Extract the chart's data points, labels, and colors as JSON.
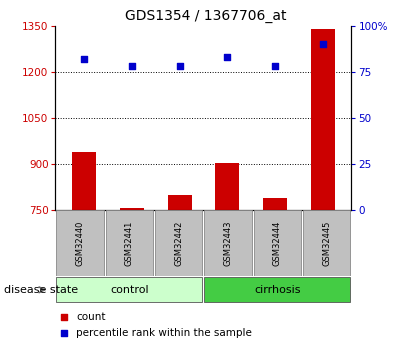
{
  "title": "GDS1354 / 1367706_at",
  "samples": [
    "GSM32440",
    "GSM32441",
    "GSM32442",
    "GSM32443",
    "GSM32444",
    "GSM32445"
  ],
  "count_values": [
    940,
    757,
    800,
    905,
    790,
    1340
  ],
  "percentile_values": [
    82,
    78,
    78,
    83,
    78,
    90
  ],
  "ylim_left": [
    750,
    1350
  ],
  "ylim_right": [
    0,
    100
  ],
  "yticks_left": [
    750,
    900,
    1050,
    1200,
    1350
  ],
  "yticks_right": [
    0,
    25,
    50,
    75,
    100
  ],
  "ytick_labels_right": [
    "0",
    "25",
    "50",
    "75",
    "100%"
  ],
  "bar_color": "#cc0000",
  "square_color": "#0000cc",
  "bar_bottom": 750,
  "groups": [
    {
      "label": "control",
      "start": 0,
      "end": 3,
      "color": "#ccffcc"
    },
    {
      "label": "cirrhosis",
      "start": 3,
      "end": 6,
      "color": "#44cc44"
    }
  ],
  "group_label": "disease state",
  "legend_count": "count",
  "legend_pct": "percentile rank within the sample",
  "title_fontsize": 10,
  "axis_label_color_left": "#cc0000",
  "axis_label_color_right": "#0000cc",
  "bar_width": 0.5,
  "x_positions": [
    0,
    1,
    2,
    3,
    4,
    5
  ]
}
